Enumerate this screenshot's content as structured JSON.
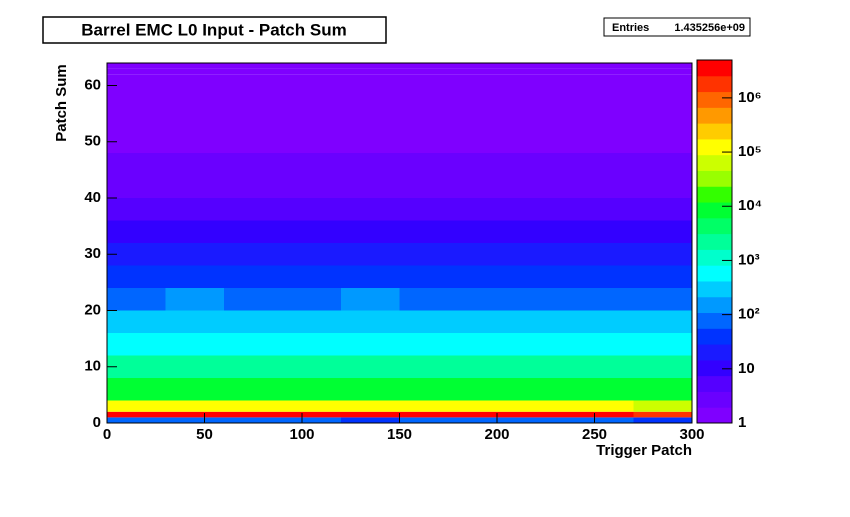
{
  "chart_data": {
    "type": "heatmap",
    "title": "Barrel EMC L0 Input - Patch Sum",
    "stats": {
      "name": "Entries",
      "entries": {
        "value": 1435256000,
        "label": "1.435256e+09"
      }
    },
    "x_label": "Trigger Patch",
    "y_label": "Patch Sum",
    "xbins": [
      0,
      30,
      60,
      90,
      120,
      150,
      180,
      210,
      240,
      270,
      300
    ],
    "ybins": [
      0,
      1,
      2,
      4,
      8,
      12,
      16,
      20,
      24,
      28,
      32,
      36,
      40,
      44,
      48,
      52,
      56,
      60,
      62,
      63,
      64
    ],
    "values": [
      [
        80,
        60,
        90,
        70,
        50,
        100,
        80,
        60,
        70,
        40
      ],
      [
        3000000,
        3200000,
        3100000,
        2900000,
        3300000,
        3000000,
        3100000,
        3000000,
        2800000,
        2500000
      ],
      [
        100000,
        120000,
        110000,
        90000,
        130000,
        100000,
        110000,
        100000,
        90000,
        80000
      ],
      [
        8000,
        9000,
        8500,
        7500,
        9500,
        8000,
        8500,
        8000,
        7500,
        7000
      ],
      [
        2000,
        2200,
        2100,
        1900,
        2300,
        2000,
        2100,
        2000,
        1900,
        1800
      ],
      [
        600,
        650,
        620,
        580,
        700,
        600,
        630,
        600,
        570,
        550
      ],
      [
        250,
        270,
        260,
        240,
        280,
        250,
        260,
        250,
        240,
        230
      ],
      [
        100,
        110,
        105,
        95,
        115,
        100,
        105,
        100,
        95,
        90
      ],
      [
        40,
        45,
        42,
        38,
        47,
        40,
        42,
        40,
        38,
        36
      ],
      [
        20,
        22,
        21,
        19,
        23,
        20,
        21,
        20,
        19,
        18
      ],
      [
        10,
        11,
        10,
        9,
        11,
        10,
        10,
        10,
        9,
        9
      ],
      [
        5,
        6,
        5,
        5,
        6,
        5,
        5,
        5,
        5,
        4
      ],
      [
        3,
        3,
        3,
        3,
        3,
        3,
        3,
        3,
        3,
        3
      ],
      [
        2,
        2,
        2,
        2,
        2,
        2,
        2,
        2,
        2,
        2
      ],
      [
        1.5,
        1.5,
        1.5,
        1.5,
        1.5,
        1.5,
        1.5,
        1.5,
        1.5,
        1.5
      ],
      [
        1.3,
        1.3,
        1.3,
        1.3,
        1.3,
        1.3,
        1.3,
        1.3,
        1.3,
        1.3
      ],
      [
        1.2,
        1.2,
        1.2,
        1.2,
        1.2,
        1.2,
        1.2,
        1.2,
        1.2,
        1.2
      ],
      [
        1.1,
        1.1,
        1.1,
        1.1,
        1.1,
        1.1,
        1.1,
        1.1,
        1.1,
        1.1
      ],
      [
        1,
        1,
        1,
        1,
        1,
        1,
        1,
        1,
        1,
        1
      ],
      [
        1.5,
        1.5,
        1.5,
        1.5,
        1.5,
        1.5,
        1.5,
        1.5,
        1.5,
        1.5
      ]
    ],
    "xlim": [
      0,
      300
    ],
    "xticks": [
      0,
      50,
      100,
      150,
      200,
      250,
      300
    ],
    "ylim": [
      0,
      64
    ],
    "yticks": [
      0,
      10,
      20,
      30,
      40,
      50,
      60
    ],
    "zlim": [
      1,
      5000000
    ],
    "zlog": true,
    "zticks": [
      1,
      10,
      {
        "value": 100,
        "label": "10²"
      },
      {
        "value": 1000,
        "label": "10³"
      },
      {
        "value": 10000,
        "label": "10⁴"
      },
      {
        "value": 100000,
        "label": "10⁵"
      },
      {
        "value": 1000000,
        "label": "10⁶"
      }
    ],
    "palette": [
      "#7f00ff",
      "#6a00ff",
      "#5500ff",
      "#3300ff",
      "#1a1aff",
      "#0033ff",
      "#0066ff",
      "#0099ff",
      "#00ccff",
      "#00ffff",
      "#00ffcc",
      "#00ff99",
      "#00ff66",
      "#00ff33",
      "#33ff00",
      "#99ff00",
      "#ccff00",
      "#ffff00",
      "#ffcc00",
      "#ff9900",
      "#ff6600",
      "#ff3300",
      "#ff0000"
    ]
  }
}
